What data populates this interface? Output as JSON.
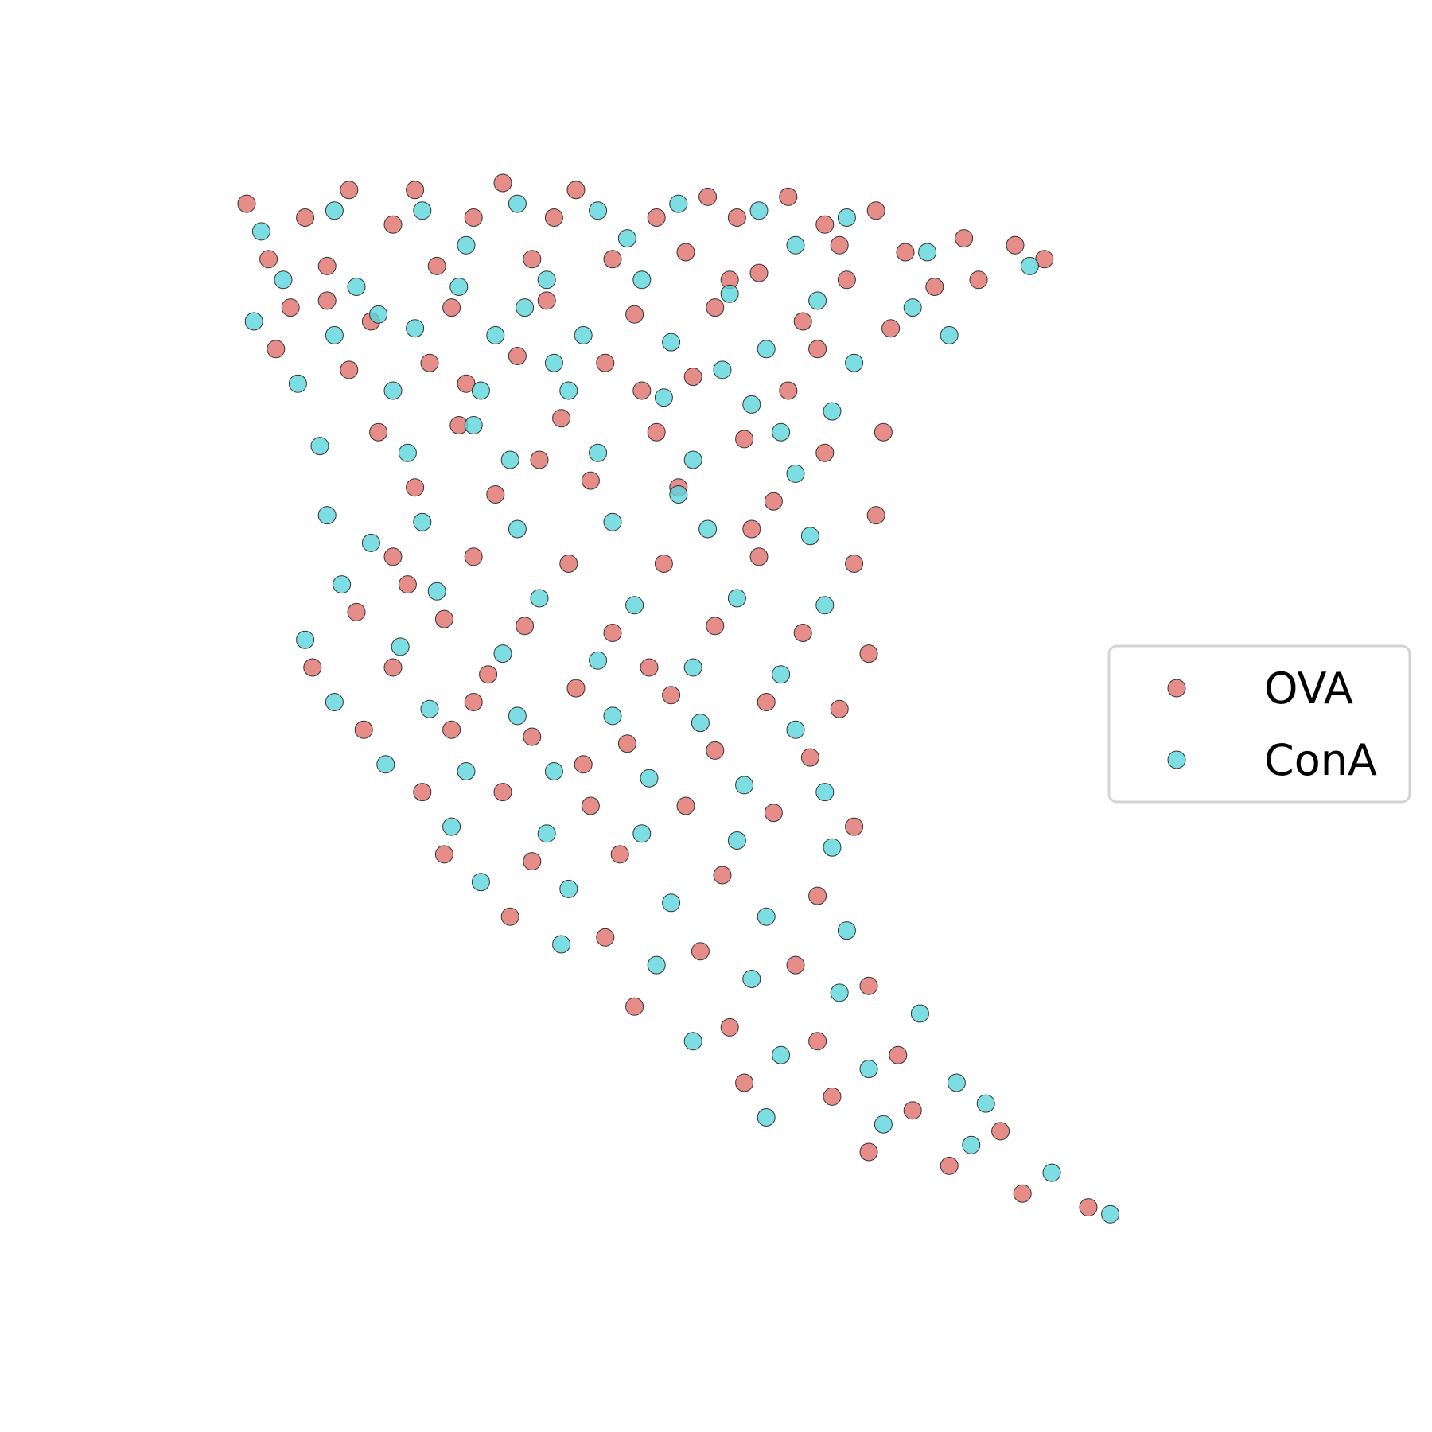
{
  "chart_data": {
    "type": "scatter",
    "title": "",
    "xlabel": "",
    "ylabel": "",
    "axes_visible": false,
    "grid": false,
    "legend_position": "right",
    "series": [
      {
        "name": "OVA",
        "color": "#e0706b",
        "points": [
          [
            -5.0,
            9.7
          ],
          [
            -3.6,
            9.9
          ],
          [
            -2.7,
            9.9
          ],
          [
            -1.5,
            10.0
          ],
          [
            -0.5,
            9.9
          ],
          [
            1.3,
            9.8
          ],
          [
            2.4,
            9.8
          ],
          [
            3.6,
            9.6
          ],
          [
            4.8,
            9.2
          ],
          [
            5.5,
            9.1
          ],
          [
            5.9,
            8.9
          ],
          [
            -4.2,
            9.5
          ],
          [
            -3.0,
            9.4
          ],
          [
            -1.9,
            9.5
          ],
          [
            -0.8,
            9.5
          ],
          [
            0.6,
            9.5
          ],
          [
            1.7,
            9.5
          ],
          [
            2.9,
            9.4
          ],
          [
            4.0,
            9.0
          ],
          [
            -4.7,
            8.9
          ],
          [
            -3.9,
            8.8
          ],
          [
            -2.4,
            8.8
          ],
          [
            -1.1,
            8.9
          ],
          [
            0.0,
            8.9
          ],
          [
            1.0,
            9.0
          ],
          [
            2.0,
            8.7
          ],
          [
            3.2,
            8.6
          ],
          [
            4.4,
            8.5
          ],
          [
            5.0,
            8.6
          ],
          [
            -4.4,
            8.2
          ],
          [
            -3.3,
            8.0
          ],
          [
            -2.2,
            8.2
          ],
          [
            -0.9,
            8.3
          ],
          [
            0.3,
            8.1
          ],
          [
            1.4,
            8.2
          ],
          [
            2.6,
            8.0
          ],
          [
            3.8,
            7.9
          ],
          [
            -4.6,
            7.6
          ],
          [
            -3.6,
            7.3
          ],
          [
            -2.5,
            7.4
          ],
          [
            -1.3,
            7.5
          ],
          [
            -0.1,
            7.4
          ],
          [
            1.1,
            7.2
          ],
          [
            2.4,
            7.0
          ],
          [
            3.7,
            6.4
          ],
          [
            -3.2,
            6.4
          ],
          [
            -2.1,
            6.5
          ],
          [
            -0.7,
            6.6
          ],
          [
            0.6,
            6.4
          ],
          [
            1.8,
            6.3
          ],
          [
            2.9,
            6.1
          ],
          [
            -2.7,
            5.6
          ],
          [
            -1.6,
            5.5
          ],
          [
            -0.3,
            5.7
          ],
          [
            0.9,
            5.6
          ],
          [
            2.2,
            5.4
          ],
          [
            3.6,
            5.2
          ],
          [
            -3.0,
            4.6
          ],
          [
            -1.9,
            4.6
          ],
          [
            -0.6,
            4.5
          ],
          [
            0.7,
            4.5
          ],
          [
            2.0,
            4.6
          ],
          [
            3.3,
            4.5
          ],
          [
            -3.5,
            3.8
          ],
          [
            -2.3,
            3.7
          ],
          [
            -1.2,
            3.6
          ],
          [
            0.0,
            3.5
          ],
          [
            1.4,
            3.6
          ],
          [
            2.6,
            3.5
          ],
          [
            3.5,
            3.2
          ],
          [
            -4.1,
            3.0
          ],
          [
            -3.0,
            3.0
          ],
          [
            -1.7,
            2.9
          ],
          [
            -0.5,
            2.7
          ],
          [
            0.8,
            2.6
          ],
          [
            2.1,
            2.5
          ],
          [
            3.1,
            2.4
          ],
          [
            -3.4,
            2.1
          ],
          [
            -2.2,
            2.1
          ],
          [
            -1.1,
            2.0
          ],
          [
            0.2,
            1.9
          ],
          [
            1.4,
            1.8
          ],
          [
            2.7,
            1.7
          ],
          [
            -2.6,
            1.2
          ],
          [
            -1.5,
            1.2
          ],
          [
            -0.3,
            1.0
          ],
          [
            1.0,
            1.0
          ],
          [
            2.2,
            0.9
          ],
          [
            3.3,
            0.7
          ],
          [
            -2.3,
            0.3
          ],
          [
            -1.1,
            0.2
          ],
          [
            0.1,
            0.3
          ],
          [
            1.5,
            0.0
          ],
          [
            2.8,
            -0.3
          ],
          [
            -1.4,
            -0.6
          ],
          [
            -0.1,
            -0.9
          ],
          [
            1.2,
            -1.1
          ],
          [
            2.5,
            -1.3
          ],
          [
            3.5,
            -1.6
          ],
          [
            0.3,
            -1.9
          ],
          [
            1.6,
            -2.2
          ],
          [
            2.8,
            -2.4
          ],
          [
            3.9,
            -2.6
          ],
          [
            1.8,
            -3.0
          ],
          [
            3.0,
            -3.2
          ],
          [
            4.1,
            -3.4
          ],
          [
            5.3,
            -3.7
          ],
          [
            3.5,
            -4.0
          ],
          [
            4.6,
            -4.2
          ],
          [
            5.6,
            -4.6
          ],
          [
            6.5,
            -4.8
          ],
          [
            -0.4,
            1.6
          ],
          [
            -1.9,
            2.5
          ],
          [
            0.5,
            3.0
          ],
          [
            -2.8,
            4.2
          ],
          [
            1.9,
            5.0
          ],
          [
            -1.0,
            6.0
          ],
          [
            0.4,
            7.0
          ],
          [
            -2.0,
            7.1
          ],
          [
            2.8,
            7.6
          ],
          [
            -3.9,
            8.3
          ],
          [
            1.6,
            8.6
          ],
          [
            3.1,
            9.1
          ]
        ]
      },
      {
        "name": "ConA",
        "color": "#5bd4dc",
        "points": [
          [
            -4.8,
            9.3
          ],
          [
            -3.8,
            9.6
          ],
          [
            -2.6,
            9.6
          ],
          [
            -1.3,
            9.7
          ],
          [
            -0.2,
            9.6
          ],
          [
            0.9,
            9.7
          ],
          [
            2.0,
            9.6
          ],
          [
            3.2,
            9.5
          ],
          [
            4.3,
            9.0
          ],
          [
            5.7,
            8.8
          ],
          [
            -4.5,
            8.6
          ],
          [
            -3.5,
            8.5
          ],
          [
            -2.1,
            8.5
          ],
          [
            -0.9,
            8.6
          ],
          [
            0.4,
            8.6
          ],
          [
            1.6,
            8.4
          ],
          [
            2.8,
            8.3
          ],
          [
            4.1,
            8.2
          ],
          [
            -4.9,
            8.0
          ],
          [
            -3.8,
            7.8
          ],
          [
            -2.7,
            7.9
          ],
          [
            -1.6,
            7.8
          ],
          [
            -0.4,
            7.8
          ],
          [
            0.8,
            7.7
          ],
          [
            2.1,
            7.6
          ],
          [
            3.3,
            7.4
          ],
          [
            -4.3,
            7.1
          ],
          [
            -3.0,
            7.0
          ],
          [
            -1.8,
            7.0
          ],
          [
            -0.6,
            7.0
          ],
          [
            0.7,
            6.9
          ],
          [
            1.9,
            6.8
          ],
          [
            3.0,
            6.7
          ],
          [
            -4.0,
            6.2
          ],
          [
            -2.8,
            6.1
          ],
          [
            -1.4,
            6.0
          ],
          [
            -0.2,
            6.1
          ],
          [
            1.1,
            6.0
          ],
          [
            2.5,
            5.8
          ],
          [
            -3.9,
            5.2
          ],
          [
            -2.6,
            5.1
          ],
          [
            -1.3,
            5.0
          ],
          [
            0.0,
            5.1
          ],
          [
            1.3,
            5.0
          ],
          [
            2.7,
            4.9
          ],
          [
            -3.7,
            4.2
          ],
          [
            -2.4,
            4.1
          ],
          [
            -1.0,
            4.0
          ],
          [
            0.3,
            3.9
          ],
          [
            1.7,
            4.0
          ],
          [
            2.9,
            3.9
          ],
          [
            -4.2,
            3.4
          ],
          [
            -2.9,
            3.3
          ],
          [
            -1.5,
            3.2
          ],
          [
            -0.2,
            3.1
          ],
          [
            1.1,
            3.0
          ],
          [
            2.3,
            2.9
          ],
          [
            -3.8,
            2.5
          ],
          [
            -2.5,
            2.4
          ],
          [
            -1.3,
            2.3
          ],
          [
            0.0,
            2.3
          ],
          [
            1.2,
            2.2
          ],
          [
            2.5,
            2.1
          ],
          [
            -3.1,
            1.6
          ],
          [
            -2.0,
            1.5
          ],
          [
            -0.8,
            1.5
          ],
          [
            0.5,
            1.4
          ],
          [
            1.8,
            1.3
          ],
          [
            2.9,
            1.2
          ],
          [
            -2.2,
            0.7
          ],
          [
            -0.9,
            0.6
          ],
          [
            0.4,
            0.6
          ],
          [
            1.7,
            0.5
          ],
          [
            3.0,
            0.4
          ],
          [
            -1.8,
            -0.1
          ],
          [
            -0.6,
            -0.2
          ],
          [
            0.8,
            -0.4
          ],
          [
            2.1,
            -0.6
          ],
          [
            3.2,
            -0.8
          ],
          [
            -0.7,
            -1.0
          ],
          [
            0.6,
            -1.3
          ],
          [
            1.9,
            -1.5
          ],
          [
            3.1,
            -1.7
          ],
          [
            4.2,
            -2.0
          ],
          [
            1.1,
            -2.4
          ],
          [
            2.3,
            -2.6
          ],
          [
            3.5,
            -2.8
          ],
          [
            4.7,
            -3.0
          ],
          [
            2.1,
            -3.5
          ],
          [
            3.7,
            -3.6
          ],
          [
            4.9,
            -3.9
          ],
          [
            6.0,
            -4.3
          ],
          [
            6.8,
            -4.9
          ],
          [
            5.1,
            -3.3
          ],
          [
            -3.3,
            4.8
          ],
          [
            0.9,
            5.5
          ],
          [
            -1.9,
            6.5
          ],
          [
            2.3,
            6.4
          ],
          [
            -0.8,
            7.4
          ],
          [
            1.5,
            7.3
          ],
          [
            -3.2,
            8.1
          ],
          [
            -1.2,
            8.2
          ],
          [
            4.6,
            7.8
          ],
          [
            -2.0,
            9.1
          ],
          [
            0.2,
            9.2
          ],
          [
            2.5,
            9.1
          ]
        ]
      }
    ]
  }
}
